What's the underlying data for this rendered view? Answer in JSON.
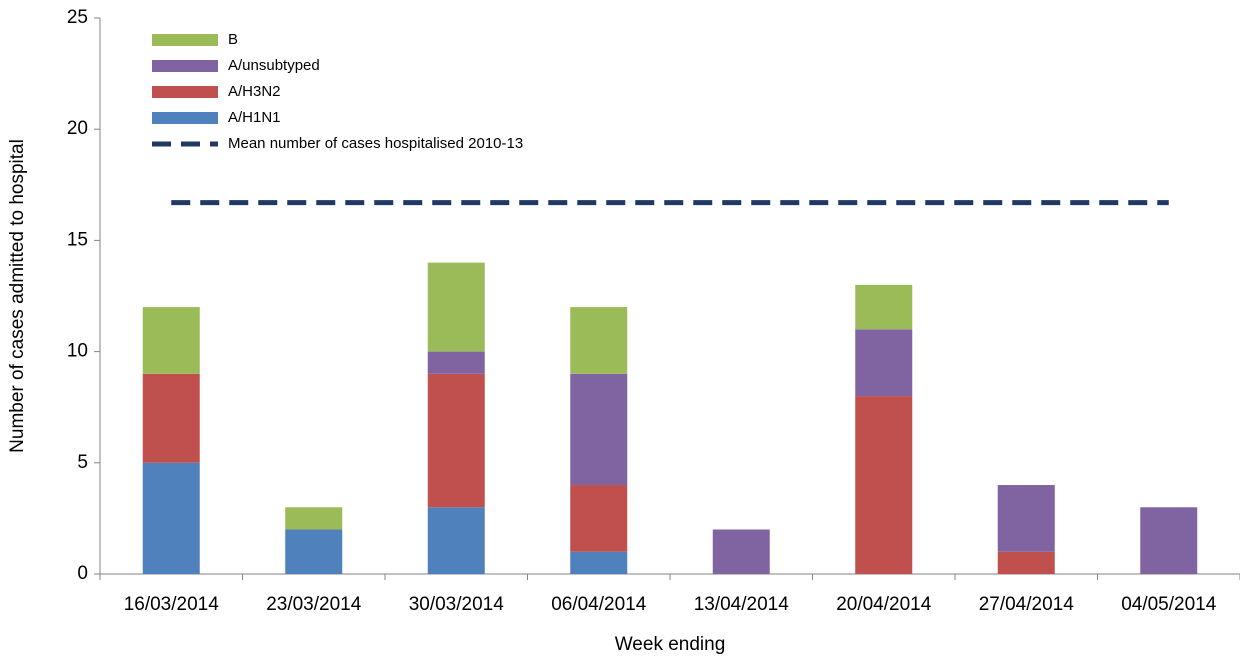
{
  "chart_data": {
    "type": "bar",
    "stacked": true,
    "x_label": "Week ending",
    "y_label": "Number of cases admitted to hospital",
    "categories": [
      "16/03/2014",
      "23/03/2014",
      "30/03/2014",
      "06/04/2014",
      "13/04/2014",
      "20/04/2014",
      "27/04/2014",
      "04/05/2014"
    ],
    "series": [
      {
        "name": "A/H1N1",
        "color": "#4f81bd",
        "values": [
          5,
          2,
          3,
          1,
          0,
          0,
          0,
          0
        ]
      },
      {
        "name": "A/H3N2",
        "color": "#c0504d",
        "values": [
          4,
          0,
          6,
          3,
          0,
          8,
          1,
          0
        ]
      },
      {
        "name": "A/unsubtyped",
        "color": "#8064a2",
        "values": [
          0,
          0,
          1,
          5,
          2,
          3,
          3,
          3
        ]
      },
      {
        "name": "B",
        "color": "#9bbb59",
        "values": [
          3,
          1,
          4,
          3,
          0,
          2,
          0,
          0
        ]
      },
      {
        "name": "Mean number of cases hospitalised 2010-13",
        "color": "#1f3864",
        "type": "line",
        "dashed": true,
        "values": [
          16.7,
          16.7,
          16.7,
          16.7,
          16.7,
          16.7,
          16.7,
          16.7
        ]
      }
    ],
    "ylim": [
      0,
      25
    ],
    "yticks": [
      0,
      5,
      10,
      15,
      20,
      25
    ],
    "grid": false,
    "legend": "top-left"
  }
}
